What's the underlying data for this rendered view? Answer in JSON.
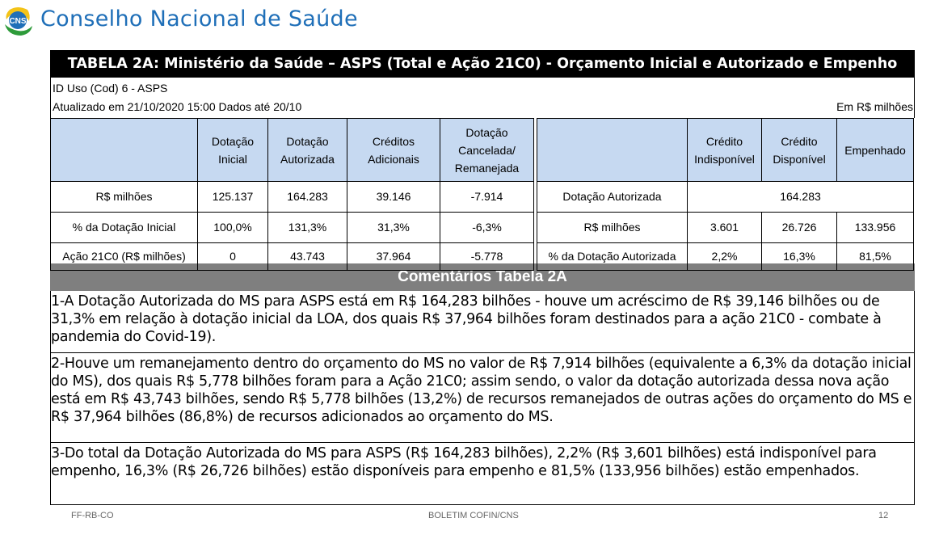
{
  "header": {
    "brand_title": "Conselho Nacional de Saúde",
    "logo_text": "CNS"
  },
  "table_title": "TABELA 2A: Ministério da Saúde – ASPS (Total e Ação 21C0) - Orçamento Inicial e Autorizado e Empenho",
  "meta": {
    "id_uso": "ID Uso (Cod) 6 - ASPS",
    "updated": "Atualizado em 21/10/2020 15:00 Dados até 20/10",
    "unit": "Em R$ milhões"
  },
  "left_table": {
    "headers": [
      "Dotação Inicial",
      "Dotação Autorizada",
      "Créditos Adicionais",
      "Dotação Cancelada/ Remanejada"
    ],
    "rows": [
      {
        "label": "R$ milhões",
        "values": [
          "125.137",
          "164.283",
          "39.146",
          "-7.914"
        ]
      },
      {
        "label": "% da Dotação Inicial",
        "values": [
          "100,0%",
          "131,3%",
          "31,3%",
          "-6,3%"
        ]
      },
      {
        "label": "Ação 21C0 (R$ milhões)",
        "values": [
          "0",
          "43.743",
          "37.964",
          "-5.778"
        ]
      }
    ]
  },
  "right_table": {
    "headers": [
      "Crédito Indisponível",
      "Crédito Disponível",
      "Empenhado"
    ],
    "row1": {
      "label": "Dotação Autorizada",
      "value": "164.283"
    },
    "rows": [
      {
        "label": "R$ milhões",
        "values": [
          "3.601",
          "26.726",
          "133.956"
        ]
      },
      {
        "label": "% da Dotação Autorizada",
        "values": [
          "2,2%",
          "16,3%",
          "81,5%"
        ]
      }
    ]
  },
  "comments": {
    "title": "Comentários Tabela 2A",
    "items": [
      "1-A Dotação Autorizada do MS para ASPS está em R$ 164,283 bilhões - houve um acréscimo de R$ 39,146 bilhões ou de 31,3% em relação à dotação inicial da LOA, dos quais R$ 37,964 bilhões foram destinados para a ação 21C0 - combate à pandemia do Covid-19).",
      "2-Houve um remanejamento dentro do orçamento do MS no valor de R$ 7,914 bilhões (equivalente a 6,3% da dotação inicial do MS), dos quais R$ 5,778 bilhões foram para a Ação 21C0; assim sendo, o valor da dotação autorizada dessa nova ação está em R$ 43,743 bilhões, sendo R$ 5,778 bilhões (13,2%) de recursos remanejados de outras ações do orçamento do MS e R$ 37,964 bilhões (86,8%) de recursos adicionados ao orçamento do MS.",
      "3-Do total da Dotação Autorizada do MS para ASPS (R$ 164,283 bilhões), 2,2% (R$ 3,601 bilhões) está indisponível para empenho, 16,3% (R$ 26,726 bilhões) estão disponíveis para empenho e 81,5% (133,956 bilhões) estão empenhados."
    ]
  },
  "footer": {
    "left": "FF-RB-CO",
    "center": "BOLETIM COFIN/CNS",
    "page": "12"
  }
}
